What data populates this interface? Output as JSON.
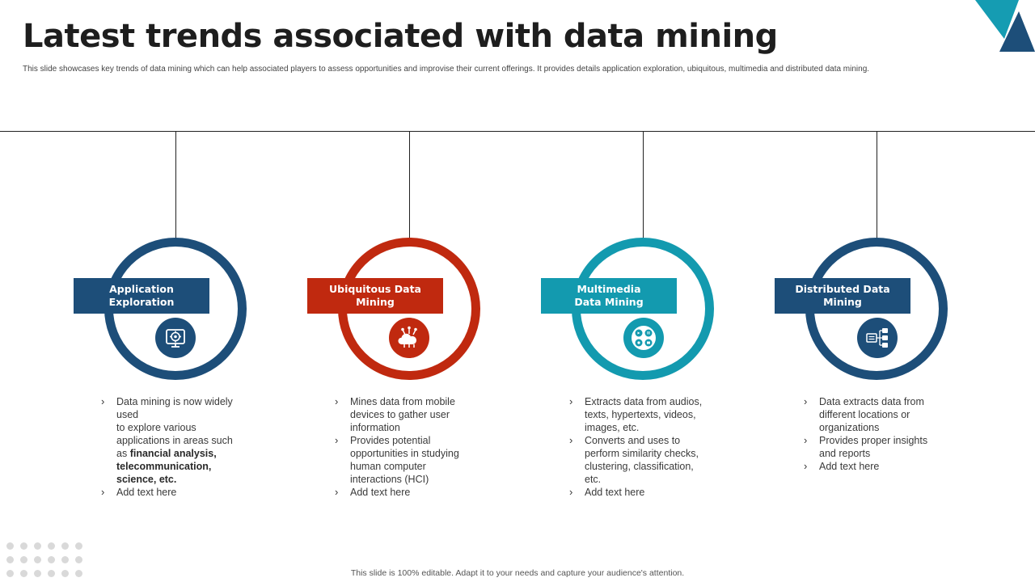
{
  "title": "Latest trends associated with data mining",
  "subtitle": "This slide showcases key trends of data mining  which can help associated players to assess opportunities and improvise their current offerings. It provides details application  exploration, ubiquitous, multimedia  and distributed data mining.",
  "footer": "This slide is 100% editable.  Adapt it to your needs and capture your audience's attention.",
  "colors": {
    "navy": "#1d4e79",
    "red": "#c0290f",
    "teal": "#139aaf",
    "corner_teal": "#159cb2"
  },
  "cards": [
    {
      "title_lines": [
        "Application",
        "Exploration"
      ],
      "icon": "gear-monitor-icon",
      "color": "#1d4e79",
      "bullets": [
        [
          "Data mining is now widely",
          "used",
          "to explore various",
          "applications in areas such"
        ],
        [
          "Add text here"
        ]
      ],
      "bullet1_tail": "as ",
      "bullet1_bold": [
        "financial analysis,",
        "telecommunication,",
        "science, etc."
      ]
    },
    {
      "title_lines": [
        "Ubiquitous Data",
        "Mining"
      ],
      "icon": "cloud-network-icon",
      "color": "#c0290f",
      "bullets": [
        [
          "Mines data from mobile",
          "devices to gather user",
          "information"
        ],
        [
          "Provides potential",
          "opportunities in studying",
          "human computer",
          "interactions (HCI)"
        ],
        [
          "Add text here"
        ]
      ]
    },
    {
      "title_lines": [
        "Multimedia",
        "Data Mining"
      ],
      "icon": "multimedia-icon",
      "color": "#139aaf",
      "bullets": [
        [
          "Extracts data from audios,",
          "texts, hypertexts, videos,",
          "images, etc."
        ],
        [
          "Converts  and uses to",
          "perform similarity checks,",
          "clustering, classification,",
          "etc."
        ],
        [
          "Add text here"
        ]
      ]
    },
    {
      "title_lines": [
        "Distributed Data",
        "Mining"
      ],
      "icon": "distributed-network-icon",
      "color": "#1d4e79",
      "bullets": [
        [
          "Data extracts data from",
          "different locations or",
          "organizations"
        ],
        [
          "Provides proper insights",
          "and reports"
        ],
        [
          "Add text here"
        ]
      ]
    }
  ]
}
